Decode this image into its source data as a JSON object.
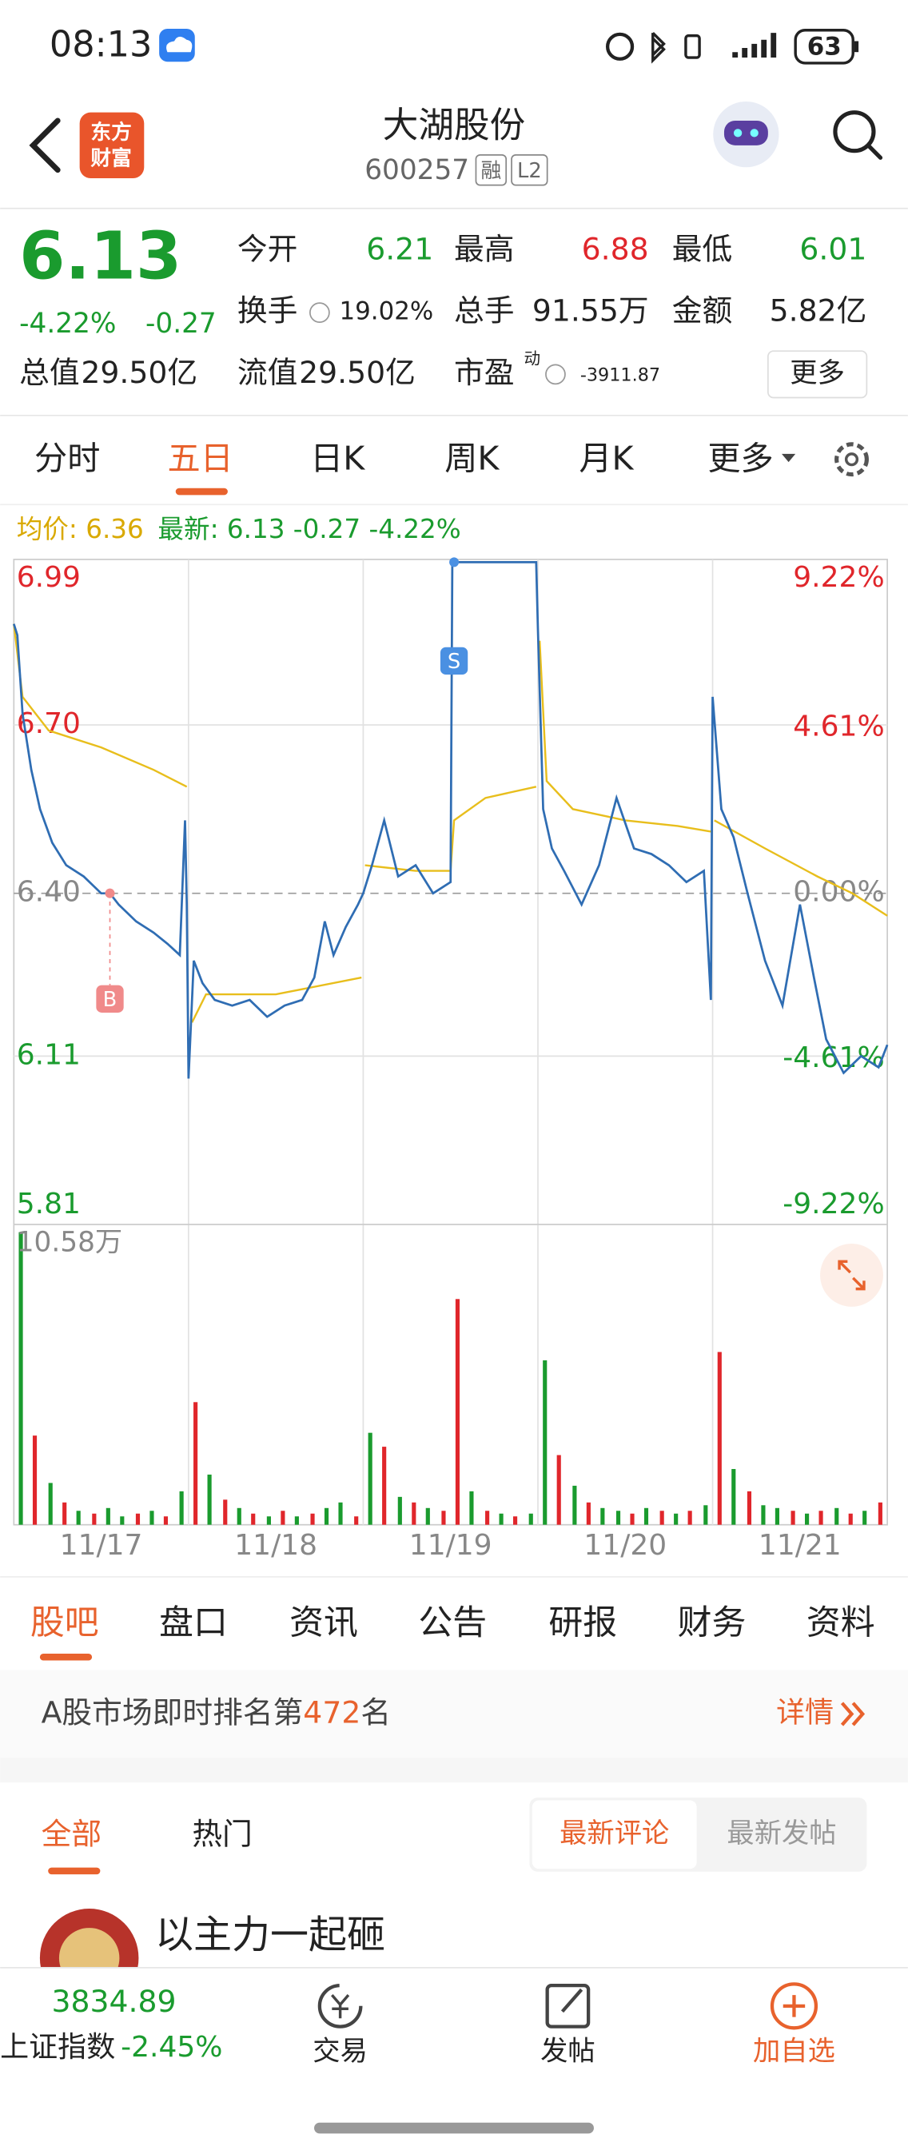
{
  "status_bar": {
    "time": "08:13",
    "battery": "63"
  },
  "header": {
    "logo_line1": "东方",
    "logo_line2": "财富",
    "title": "大湖股份",
    "code": "600257",
    "badge_margin": "融",
    "badge_level": "L2"
  },
  "quote": {
    "price": "6.13",
    "change_pct": "-4.22%",
    "change": "-0.27",
    "fields": [
      {
        "label": "今开",
        "value": "6.21"
      },
      {
        "label": "最高",
        "value": "6.88"
      },
      {
        "label": "最低",
        "value": "6.01"
      },
      {
        "label": "换手",
        "value": "19.02%"
      },
      {
        "label": "总手",
        "value": "91.55万"
      },
      {
        "label": "金额",
        "value": "5.82亿"
      }
    ],
    "total_value_label": "总值",
    "total_value": "29.50亿",
    "float_value_label": "流值",
    "float_value": "29.50亿",
    "pe_label": "市盈",
    "pe_note": "动",
    "pe_value": "-3911.87",
    "more": "更多"
  },
  "chart_tabs": [
    "分时",
    "五日",
    "日K",
    "周K",
    "月K",
    "更多"
  ],
  "chart_data": {
    "type": "line",
    "avg_label": "均价: 6.36",
    "latest_label": "最新: 6.13 -0.27 -4.22%",
    "categories": [
      "11/17",
      "11/18",
      "11/19",
      "11/20",
      "11/21"
    ],
    "xlim": [
      0,
      5
    ],
    "ylim": [
      5.81,
      6.99
    ],
    "yticks": [
      6.99,
      {
        "value": 6.7,
        "label": "6.70"
      },
      {
        "value": 6.4,
        "label": "6.40"
      },
      6.11,
      5.81
    ],
    "y2lim": [
      -9.22,
      9.22
    ],
    "y2ticks": [
      {
        "value": 9.22,
        "label": "9.22%"
      },
      {
        "value": 4.61,
        "label": "4.61%"
      },
      {
        "value": 0,
        "label": "0.00%"
      },
      {
        "value": -4.61,
        "label": "-4.61%"
      },
      {
        "value": -9.22,
        "label": "-9.22%"
      }
    ],
    "grid": true,
    "series": [
      {
        "color": "#2f6db3",
        "x": [
          0,
          0.02,
          0.05,
          0.1,
          0.15,
          0.22,
          0.3,
          0.4,
          0.5,
          0.55,
          0.6,
          0.7,
          0.8,
          0.88,
          0.95,
          0.98,
          0.99,
          1,
          1.03,
          1.08,
          1.15,
          1.25,
          1.35,
          1.45,
          1.55,
          1.65,
          1.72,
          1.78,
          1.83,
          1.9,
          1.97,
          2,
          2.05,
          2.12,
          2.2,
          2.3,
          2.4,
          2.5,
          2.51,
          2.99,
          3,
          3.03,
          3.08,
          3.15,
          3.25,
          3.35,
          3.45,
          3.55,
          3.65,
          3.75,
          3.85,
          3.95,
          3.99,
          4,
          4.05,
          4.12,
          4.2,
          4.3,
          4.4,
          4.5,
          4.58,
          4.65,
          4.75,
          4.85,
          4.95,
          5
        ],
        "values": [
          6.88,
          6.86,
          6.72,
          6.62,
          6.55,
          6.49,
          6.45,
          6.43,
          6.4,
          6.4,
          6.38,
          6.35,
          6.33,
          6.31,
          6.29,
          6.53,
          6.38,
          6.07,
          6.28,
          6.24,
          6.21,
          6.2,
          6.21,
          6.18,
          6.2,
          6.21,
          6.25,
          6.35,
          6.29,
          6.34,
          6.38,
          6.4,
          6.45,
          6.53,
          6.43,
          6.45,
          6.4,
          6.42,
          6.99,
          6.99,
          6.87,
          6.55,
          6.48,
          6.44,
          6.38,
          6.45,
          6.57,
          6.48,
          6.47,
          6.45,
          6.42,
          6.44,
          6.21,
          6.75,
          6.55,
          6.5,
          6.4,
          6.28,
          6.2,
          6.38,
          6.25,
          6.14,
          6.08,
          6.11,
          6.09,
          6.13
        ]
      },
      {
        "color": "#e8be1c",
        "x": [
          0,
          0.05,
          0.2,
          0.5,
          0.8,
          0.99,
          1,
          1.02,
          1.1,
          1.5,
          1.99,
          2,
          2.01,
          2.3,
          2.5,
          2.52,
          2.7,
          2.99,
          3,
          3.01,
          3.05,
          3.2,
          3.5,
          3.8,
          3.99,
          4,
          4.01,
          4.3,
          4.6,
          4.8,
          5
        ],
        "values": [
          6.88,
          6.75,
          6.69,
          6.66,
          6.62,
          6.59,
          null,
          6.17,
          6.22,
          6.22,
          6.25,
          null,
          6.45,
          6.44,
          6.44,
          6.53,
          6.57,
          6.59,
          null,
          6.85,
          6.6,
          6.55,
          6.53,
          6.52,
          6.51,
          null,
          6.53,
          6.48,
          6.43,
          6.4,
          6.36
        ]
      }
    ],
    "annotations": [
      {
        "label": "B",
        "x": 0.55,
        "y": 6.4
      },
      {
        "label": "S",
        "x": 2.52,
        "y": 6.99
      }
    ],
    "volume": {
      "ylim": [
        0,
        10.58
      ],
      "yticks": [
        {
          "value": 10.58,
          "label": "10.58万"
        }
      ],
      "x": [
        0.04,
        0.12,
        0.21,
        0.29,
        0.37,
        0.46,
        0.54,
        0.62,
        0.71,
        0.79,
        0.87,
        0.96,
        1.04,
        1.12,
        1.21,
        1.29,
        1.37,
        1.46,
        1.54,
        1.62,
        1.71,
        1.79,
        1.87,
        1.96,
        2.04,
        2.12,
        2.21,
        2.29,
        2.37,
        2.46,
        2.54,
        2.62,
        2.71,
        2.79,
        2.87,
        2.96,
        3.04,
        3.12,
        3.21,
        3.29,
        3.37,
        3.46,
        3.54,
        3.62,
        3.71,
        3.79,
        3.87,
        3.96,
        4.04,
        4.12,
        4.21,
        4.29,
        4.37,
        4.46,
        4.54,
        4.62,
        4.71,
        4.79,
        4.87,
        4.96
      ],
      "values": [
        10.5,
        3.2,
        1.5,
        0.8,
        0.5,
        0.4,
        0.6,
        0.3,
        0.4,
        0.5,
        0.3,
        1.2,
        4.4,
        1.8,
        0.9,
        0.6,
        0.4,
        0.3,
        0.5,
        0.3,
        0.4,
        0.6,
        0.8,
        0.3,
        3.3,
        2.8,
        1.0,
        0.8,
        0.6,
        0.5,
        8.1,
        1.2,
        0.5,
        0.4,
        0.3,
        0.4,
        5.9,
        2.5,
        1.4,
        0.8,
        0.6,
        0.5,
        0.4,
        0.6,
        0.5,
        0.4,
        0.5,
        0.7,
        6.2,
        2.0,
        1.2,
        0.7,
        0.6,
        0.5,
        0.4,
        0.5,
        0.6,
        0.4,
        0.5,
        0.8
      ],
      "colors": [
        "#1a9b2e",
        "#e0262b",
        "#1a9b2e",
        "#e0262b",
        "#1a9b2e",
        "#e0262b",
        "#1a9b2e",
        "#1a9b2e",
        "#e0262b",
        "#1a9b2e",
        "#e0262b",
        "#1a9b2e",
        "#e0262b",
        "#1a9b2e",
        "#e0262b",
        "#1a9b2e",
        "#e0262b",
        "#1a9b2e",
        "#e0262b",
        "#1a9b2e",
        "#e0262b",
        "#1a9b2e",
        "#1a9b2e",
        "#e0262b",
        "#1a9b2e",
        "#e0262b",
        "#1a9b2e",
        "#e0262b",
        "#1a9b2e",
        "#e0262b",
        "#e0262b",
        "#1a9b2e",
        "#e0262b",
        "#1a9b2e",
        "#e0262b",
        "#1a9b2e",
        "#1a9b2e",
        "#e0262b",
        "#1a9b2e",
        "#e0262b",
        "#1a9b2e",
        "#1a9b2e",
        "#e0262b",
        "#1a9b2e",
        "#e0262b",
        "#1a9b2e",
        "#e0262b",
        "#1a9b2e",
        "#e0262b",
        "#1a9b2e",
        "#e0262b",
        "#1a9b2e",
        "#1a9b2e",
        "#e0262b",
        "#1a9b2e",
        "#e0262b",
        "#1a9b2e",
        "#e0262b",
        "#1a9b2e",
        "#e0262b"
      ]
    }
  },
  "section_tabs": [
    "股吧",
    "盘口",
    "资讯",
    "公告",
    "研报",
    "财务",
    "资料"
  ],
  "rank": {
    "prefix": "A股市场即时排名第",
    "number": "472",
    "suffix": "名",
    "detail": "详情"
  },
  "feed": {
    "tab_all": "全部",
    "tab_hot": "热门",
    "sort_latest_comment": "最新评论",
    "sort_latest_post": "最新发帖",
    "post_author": "以主力一起砸"
  },
  "bottom_bar": {
    "index_value": "3834.89",
    "index_name": "上证指数",
    "index_change": "-2.45%",
    "trade": "交易",
    "post": "发帖",
    "watch": "加自选"
  }
}
